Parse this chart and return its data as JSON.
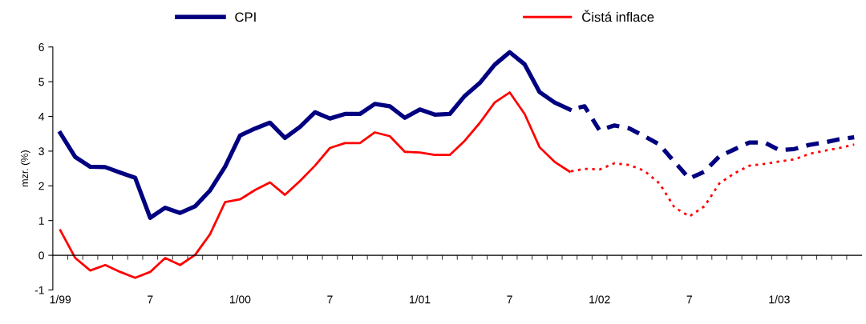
{
  "chart_data": {
    "type": "line",
    "ylabel": "mzr. (%)",
    "categories": [
      "1/99",
      null,
      null,
      null,
      null,
      null,
      "7",
      null,
      null,
      null,
      null,
      null,
      "1/00",
      null,
      null,
      null,
      null,
      null,
      "7",
      null,
      null,
      null,
      null,
      null,
      "1/01",
      null,
      null,
      null,
      null,
      null,
      "7",
      null,
      null,
      null,
      null,
      null,
      "1/02",
      null,
      null,
      null,
      null,
      null,
      "7",
      null,
      null,
      null,
      null,
      null,
      "1/03",
      null,
      null,
      null,
      null,
      null
    ],
    "series": [
      {
        "name": "CPI",
        "color": "#000080",
        "line_style": "solid",
        "values": [
          3.52,
          2.83,
          2.55,
          2.54,
          2.38,
          2.23,
          1.08,
          1.37,
          1.22,
          1.41,
          1.87,
          2.55,
          3.45,
          3.65,
          3.82,
          3.38,
          3.7,
          4.12,
          3.94,
          4.07,
          4.07,
          4.36,
          4.29,
          3.96,
          4.2,
          4.05,
          4.07,
          4.59,
          4.96,
          5.49,
          5.85,
          5.5,
          4.7,
          4.4,
          4.2,
          null,
          null,
          null,
          null,
          null,
          null,
          null,
          null,
          null,
          null,
          null,
          null,
          null,
          null,
          null,
          null,
          null,
          null,
          null
        ]
      },
      {
        "color": "#000080",
        "line_style": "dashed",
        "values": [
          null,
          null,
          null,
          null,
          null,
          null,
          null,
          null,
          null,
          null,
          null,
          null,
          null,
          null,
          null,
          null,
          null,
          null,
          null,
          null,
          null,
          null,
          null,
          null,
          null,
          null,
          null,
          null,
          null,
          null,
          null,
          null,
          null,
          null,
          4.2,
          4.29,
          3.6,
          3.74,
          3.65,
          3.43,
          3.19,
          2.69,
          2.21,
          2.41,
          2.85,
          3.05,
          3.25,
          3.25,
          3.03,
          3.06,
          3.18,
          3.25,
          3.34,
          3.4
        ]
      },
      {
        "name": "Čistá inflace",
        "color": "#ff0000",
        "line_style": "solid",
        "values": [
          0.72,
          -0.08,
          -0.44,
          -0.28,
          -0.48,
          -0.65,
          -0.48,
          -0.08,
          -0.28,
          0.01,
          0.61,
          1.53,
          1.61,
          1.88,
          2.1,
          1.74,
          2.14,
          2.58,
          3.09,
          3.23,
          3.23,
          3.54,
          3.43,
          2.98,
          2.96,
          2.89,
          2.89,
          3.3,
          3.81,
          4.4,
          4.69,
          4.07,
          3.11,
          2.69,
          2.41,
          null,
          null,
          null,
          null,
          null,
          null,
          null,
          null,
          null,
          null,
          null,
          null,
          null,
          null,
          null,
          null,
          null,
          null,
          null
        ]
      },
      {
        "color": "#ff0000",
        "line_style": "dotted",
        "values": [
          null,
          null,
          null,
          null,
          null,
          null,
          null,
          null,
          null,
          null,
          null,
          null,
          null,
          null,
          null,
          null,
          null,
          null,
          null,
          null,
          null,
          null,
          null,
          null,
          null,
          null,
          null,
          null,
          null,
          null,
          null,
          null,
          null,
          null,
          2.41,
          2.49,
          2.47,
          2.65,
          2.6,
          2.43,
          2.07,
          1.38,
          1.12,
          1.41,
          2.07,
          2.36,
          2.58,
          2.63,
          2.7,
          2.76,
          2.92,
          3.01,
          3.09,
          3.19
        ]
      }
    ],
    "ylim": [
      -1,
      6
    ],
    "yticks": [
      -1,
      0,
      1,
      2,
      3,
      4,
      5,
      6
    ],
    "legend": "top"
  }
}
